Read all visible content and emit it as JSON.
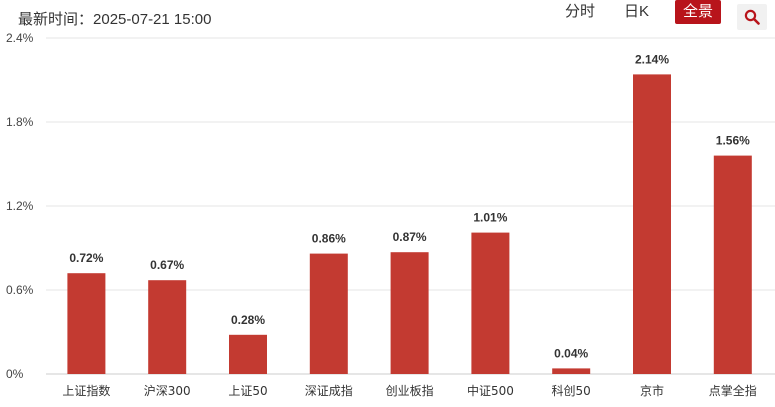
{
  "header": {
    "updated_label": "最新时间：",
    "updated_time": "2025-07-21 15:00",
    "tabs": [
      {
        "label": "分时",
        "active": false
      },
      {
        "label": "日K",
        "active": false
      },
      {
        "label": "全景",
        "active": true
      }
    ],
    "search_icon": "search-icon"
  },
  "colors": {
    "bar": "#c33a31",
    "active_tab": "#b8141b",
    "grid": "#e6e6e6",
    "text": "#333333"
  },
  "chart_data": {
    "type": "bar",
    "categories": [
      "上证指数",
      "沪深300",
      "上证50",
      "深证成指",
      "创业板指",
      "中证500",
      "科创50",
      "京市",
      "点掌全指"
    ],
    "values": [
      0.72,
      0.67,
      0.28,
      0.86,
      0.87,
      1.01,
      0.04,
      2.14,
      1.56
    ],
    "data_labels": [
      "0.72%",
      "0.67%",
      "0.28%",
      "0.86%",
      "0.87%",
      "1.01%",
      "0.04%",
      "2.14%",
      "1.56%"
    ],
    "yticks": [
      0,
      0.6,
      1.2,
      1.8,
      2.4
    ],
    "ytick_labels": [
      "0%",
      "0.6%",
      "1.2%",
      "1.8%",
      "2.4%"
    ],
    "ylim": [
      0,
      2.4
    ],
    "grid": true
  }
}
